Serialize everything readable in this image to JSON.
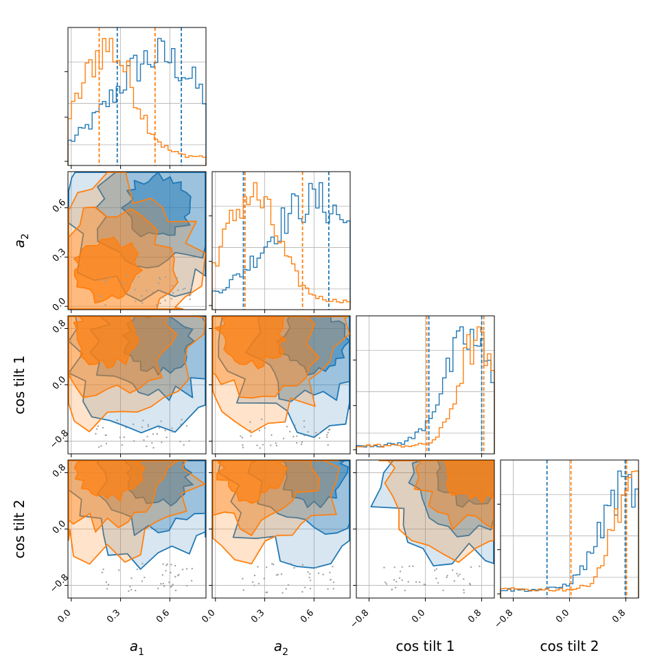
{
  "chart_data": {
    "type": "corner",
    "parameters": [
      {
        "key": "a1",
        "label": "a",
        "sub": "1",
        "range": [
          -0.02,
          0.82
        ],
        "ticks": [
          0.0,
          0.3,
          0.6
        ],
        "tick_labels": [
          "0.0",
          "0.3",
          "0.6"
        ]
      },
      {
        "key": "a2",
        "label": "a",
        "sub": "2",
        "range": [
          -0.02,
          0.82
        ],
        "ticks": [
          0.0,
          0.3,
          0.6
        ],
        "tick_labels": [
          "0.0",
          "0.3",
          "0.6"
        ]
      },
      {
        "key": "cos_tilt_1",
        "label": "cos tilt 1",
        "sub": "",
        "range": [
          -0.98,
          0.98
        ],
        "ticks": [
          -0.8,
          0.0,
          0.8
        ],
        "tick_labels": [
          "−0.8",
          "0.0",
          "0.8"
        ]
      },
      {
        "key": "cos_tilt_2",
        "label": "cos tilt 2",
        "sub": "",
        "range": [
          -0.98,
          0.98
        ],
        "ticks": [
          -0.8,
          0.0,
          0.8
        ],
        "tick_labels": [
          "−0.8",
          "0.0",
          "0.8"
        ]
      }
    ],
    "series": [
      {
        "color": "#1f77b4",
        "quantiles": {
          "a1": [
            0.28,
            0.67
          ],
          "a2": [
            0.17,
            0.69
          ],
          "cos_tilt_1": [
            0.05,
            0.8
          ],
          "cos_tilt_2": [
            -0.32,
            0.79
          ]
        },
        "peaks": {
          "a1": 0.53,
          "a2": 0.6,
          "cos_tilt_1": 0.62,
          "cos_tilt_2": 0.8
        }
      },
      {
        "color": "#ff7f0e",
        "quantiles": {
          "a1": [
            0.17,
            0.51
          ],
          "a2": [
            0.18,
            0.53
          ],
          "cos_tilt_1": [
            0.02,
            0.83
          ],
          "cos_tilt_2": [
            0.02,
            0.81
          ]
        },
        "peaks": {
          "a1": 0.22,
          "a2": 0.22,
          "cos_tilt_1": 0.72,
          "cos_tilt_2": 0.87
        }
      }
    ],
    "grid": true
  }
}
